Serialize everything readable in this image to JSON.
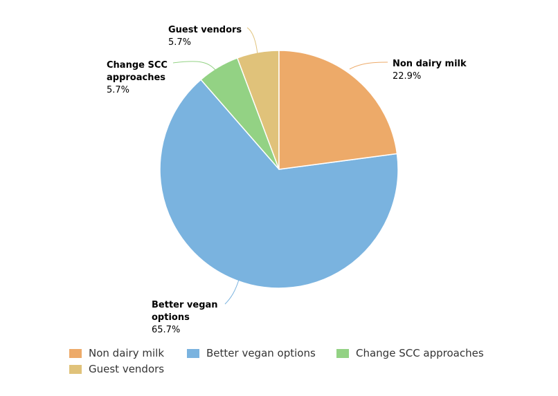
{
  "chart_data": {
    "type": "pie",
    "start_angle": "top, clockwise",
    "slices": [
      {
        "name": "Non dairy milk",
        "value": 22.9,
        "label": "22.9%",
        "color": "#EDAA69",
        "label_lines": [
          "Non dairy milk"
        ]
      },
      {
        "name": "Better vegan options",
        "value": 65.7,
        "label": "65.7%",
        "color": "#7AB3DF",
        "label_lines": [
          "Better vegan",
          "options"
        ]
      },
      {
        "name": "Change SCC approaches",
        "value": 5.7,
        "label": "5.7%",
        "color": "#93D284",
        "label_lines": [
          "Change SCC",
          "approaches"
        ]
      },
      {
        "name": "Guest vendors",
        "value": 5.7,
        "label": "5.7%",
        "color": "#E0C27A",
        "label_lines": [
          "Guest vendors"
        ]
      }
    ],
    "legend": {
      "placement": "bottom-left",
      "entries": [
        "Non dairy milk",
        "Better vegan options",
        "Change SCC approaches",
        "Guest vendors"
      ]
    }
  }
}
